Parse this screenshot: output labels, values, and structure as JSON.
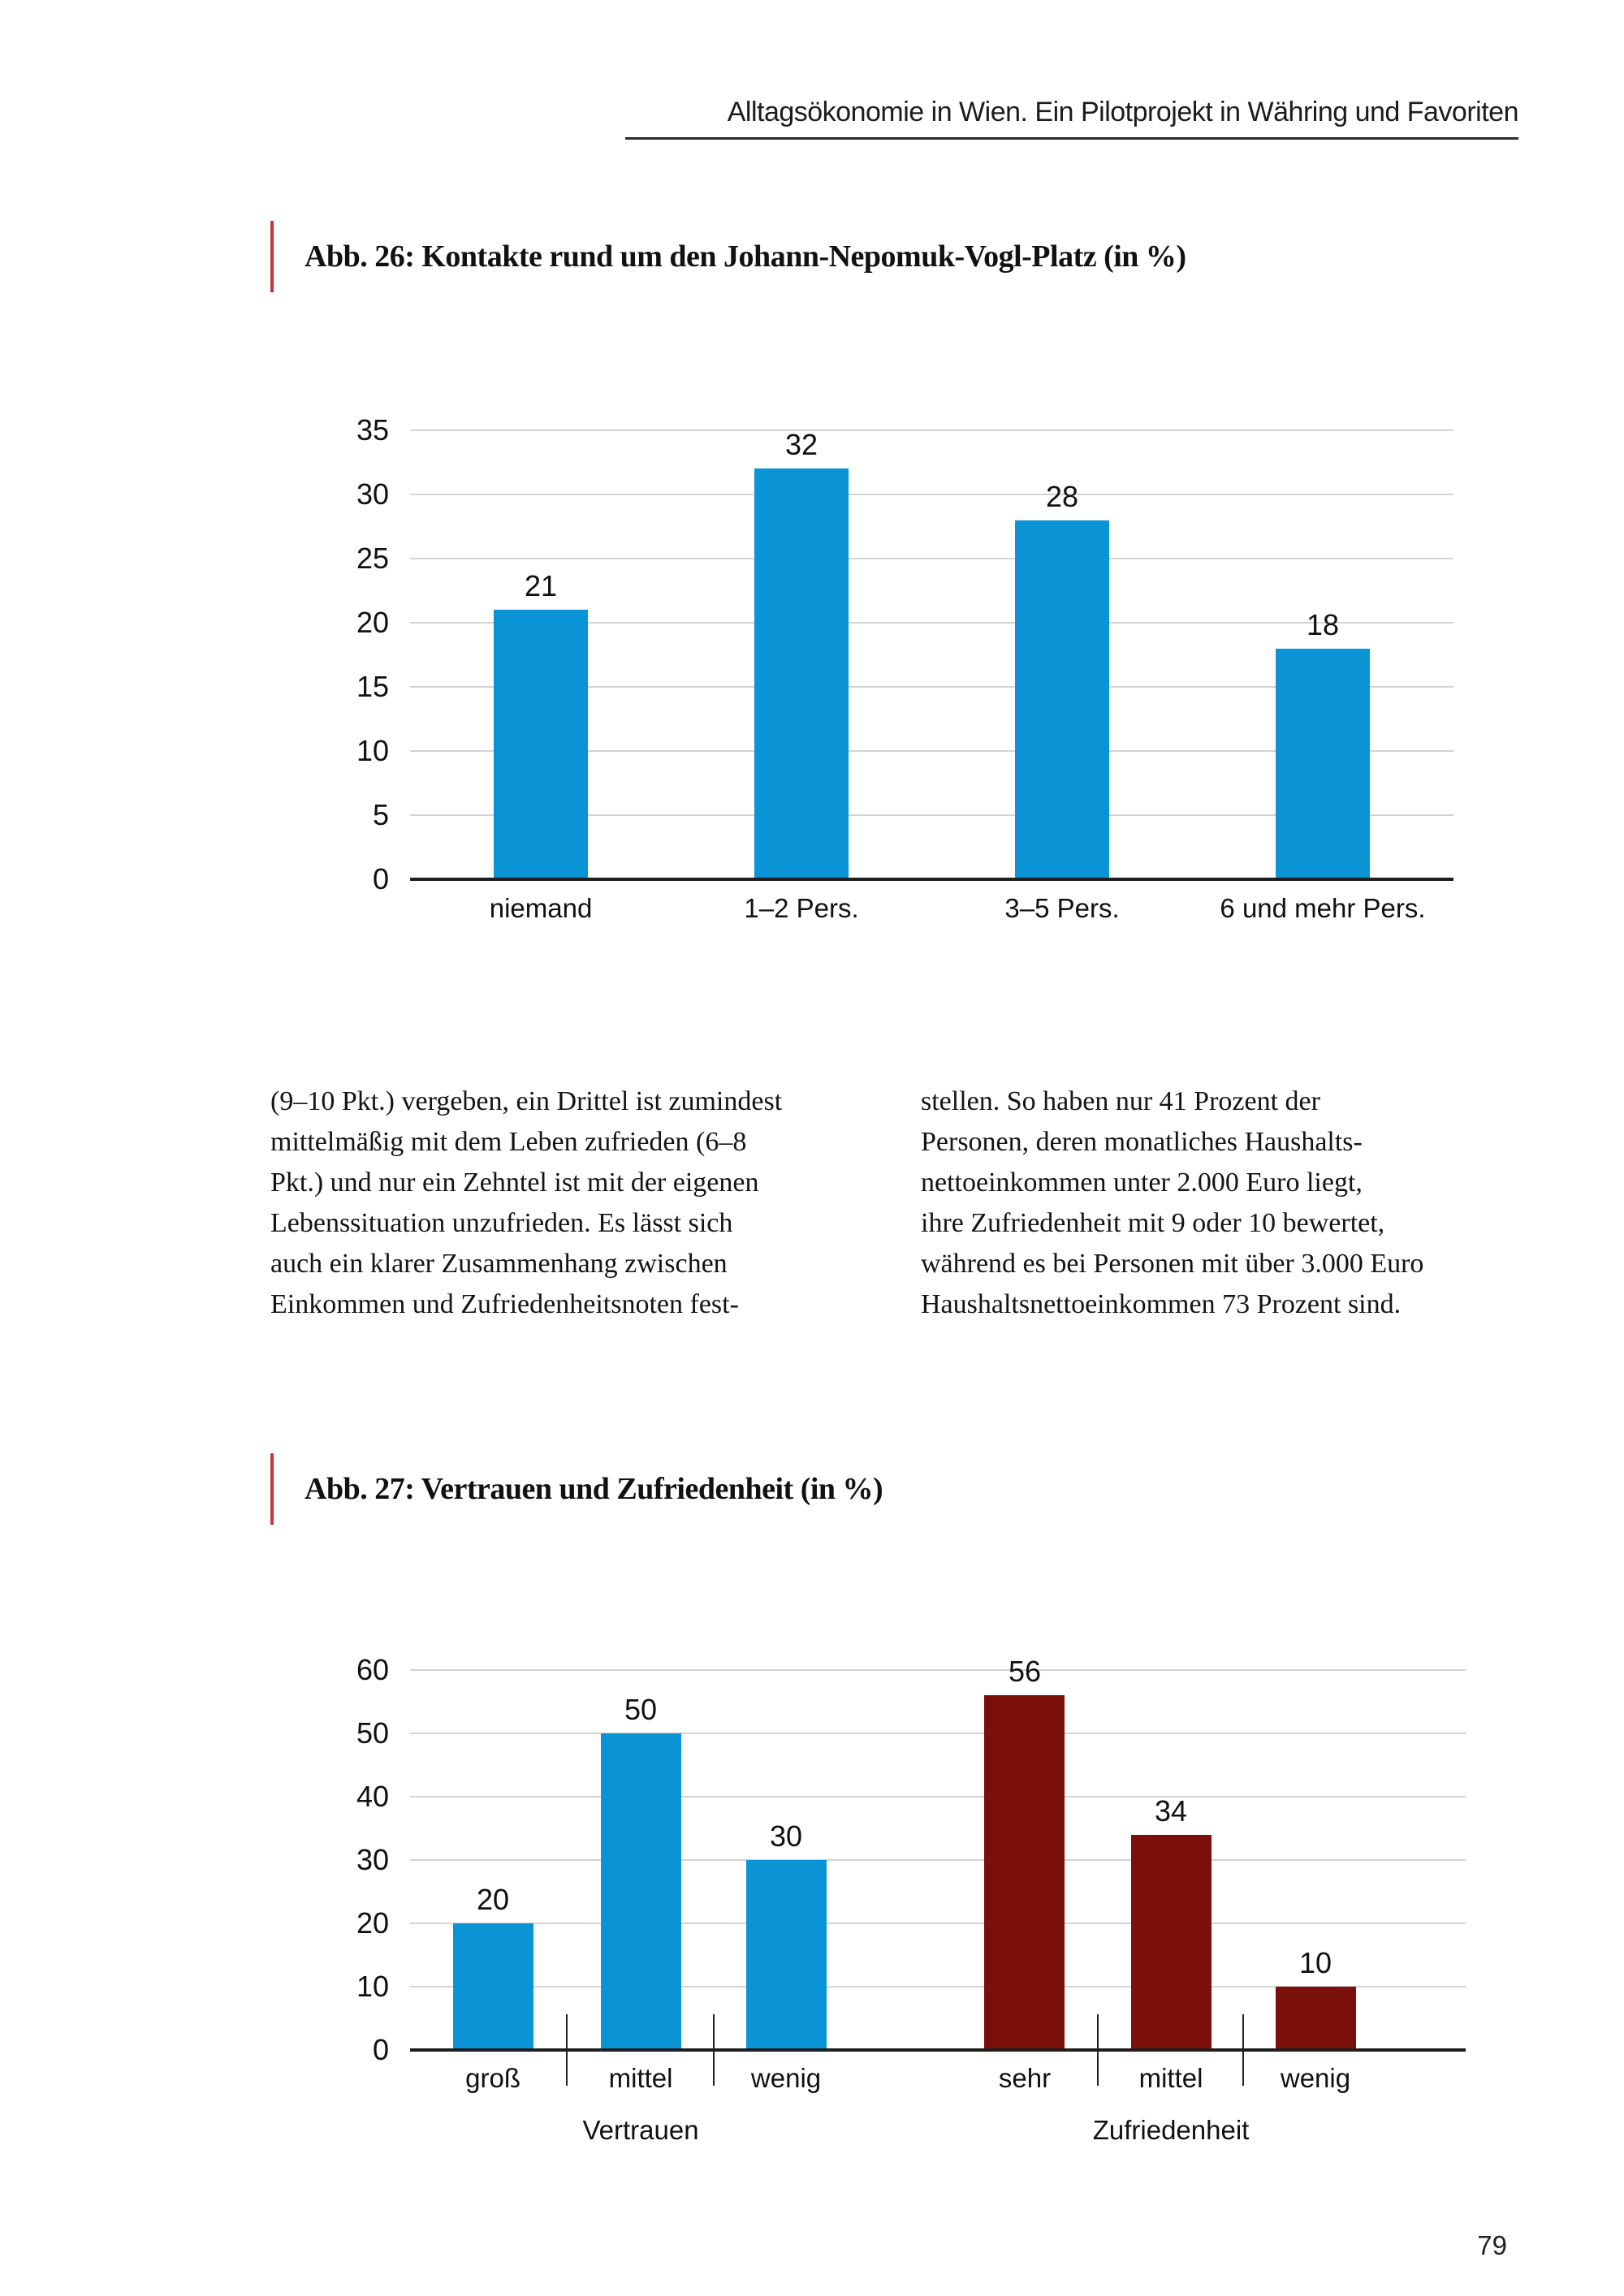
{
  "page": {
    "running_head": "Alltagsökonomie in Wien. Ein Pilotprojekt in Währing und Favoriten",
    "page_number": "79"
  },
  "figures": {
    "fig26_caption": "Abb. 26: Kontakte rund um den Johann-Nepomuk-Vogl-Platz (in %)",
    "fig27_caption": "Abb. 27: Vertrauen und Zufriedenheit (in %)"
  },
  "body_text": {
    "left_column_lines": [
      "(9–10 Pkt.) vergeben, ein Drittel ist zumindest",
      "mittelmäßig mit dem Leben zufrieden (6–8",
      "Pkt.) und nur ein Zehntel ist mit der eigenen",
      "Lebenssituation unzufrieden. Es lässt sich",
      "auch ein klarer Zusammenhang zwischen",
      "Einkommen und Zufriedenheitsnoten fest-"
    ],
    "right_column_lines": [
      "stellen. So haben nur 41 Prozent der",
      "Personen, deren monatliches Haushalts-",
      "nettoeinkommen unter 2.000 Euro liegt,",
      "ihre Zufriedenheit mit 9 oder 10 bewertet,",
      "während es bei Personen mit über 3.000 Euro",
      "Haushaltsnettoeinkommen 73 Prozent sind."
    ]
  },
  "colors": {
    "bar_blue": "#0a94d5",
    "bar_dark_red": "#7a1009",
    "caption_accent_red": "#c9353b",
    "gridline_gray": "#d3d3d3",
    "axis_black": "#1e1e1e"
  },
  "chart_data": [
    {
      "id": "fig26",
      "type": "bar",
      "title": "Abb. 26: Kontakte rund um den Johann-Nepomuk-Vogl-Platz (in %)",
      "categories": [
        "niemand",
        "1–2 Pers.",
        "3–5 Pers.",
        "6 und mehr Pers."
      ],
      "values": [
        21,
        32,
        28,
        18
      ],
      "bar_color": "#0a94d5",
      "ylim": [
        0,
        35
      ],
      "yticks": [
        0,
        5,
        10,
        15,
        20,
        25,
        30,
        35
      ],
      "grid": true,
      "value_labels": true,
      "legend": "none"
    },
    {
      "id": "fig27",
      "type": "bar",
      "title": "Abb. 27: Vertrauen und Zufriedenheit (in %)",
      "groups": [
        {
          "name": "Vertrauen",
          "color": "#0a94d5",
          "categories": [
            "groß",
            "mittel",
            "wenig"
          ],
          "values": [
            20,
            50,
            30
          ]
        },
        {
          "name": "Zufriedenheit",
          "color": "#7a1009",
          "categories": [
            "sehr",
            "mittel",
            "wenig"
          ],
          "values": [
            56,
            34,
            10
          ]
        }
      ],
      "ylim": [
        0,
        60
      ],
      "yticks": [
        0,
        10,
        20,
        30,
        40,
        50,
        60
      ],
      "grid": true,
      "value_labels": true,
      "legend": "none"
    }
  ]
}
